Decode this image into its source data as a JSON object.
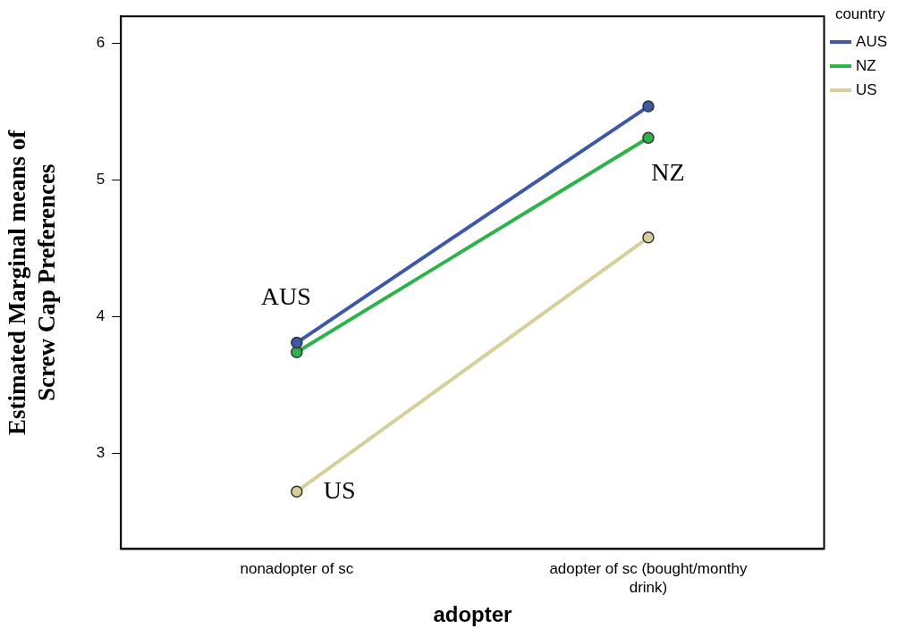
{
  "chart_data": {
    "type": "line",
    "xlabel": "adopter",
    "ylabel": "Estimated Marginal means of  Screw Cap Preferences",
    "legend_title": "country",
    "legend": "top right",
    "marker": "circle",
    "grid": false,
    "categories": [
      "nonadopter of sc",
      "adopter of sc (bought/monthy drink)"
    ],
    "ylim": [
      2.3,
      6.2
    ],
    "yticks": [
      3,
      4,
      5,
      6
    ],
    "series": [
      {
        "name": "AUS",
        "color": "#3f57a8",
        "values": [
          3.81,
          5.54
        ]
      },
      {
        "name": "NZ",
        "color": "#2db34a",
        "values": [
          3.74,
          5.31
        ]
      },
      {
        "name": "US",
        "color": "#d6cf9a",
        "values": [
          2.72,
          4.58
        ]
      }
    ],
    "annotations": [
      {
        "text": "AUS",
        "x": "nonadopter of sc",
        "y": 3.81
      },
      {
        "text": "NZ",
        "x": "adopter of sc (bought/monthy drink)",
        "y": 5.31
      },
      {
        "text": "US",
        "x": "nonadopter of sc",
        "y": 2.72
      }
    ]
  }
}
